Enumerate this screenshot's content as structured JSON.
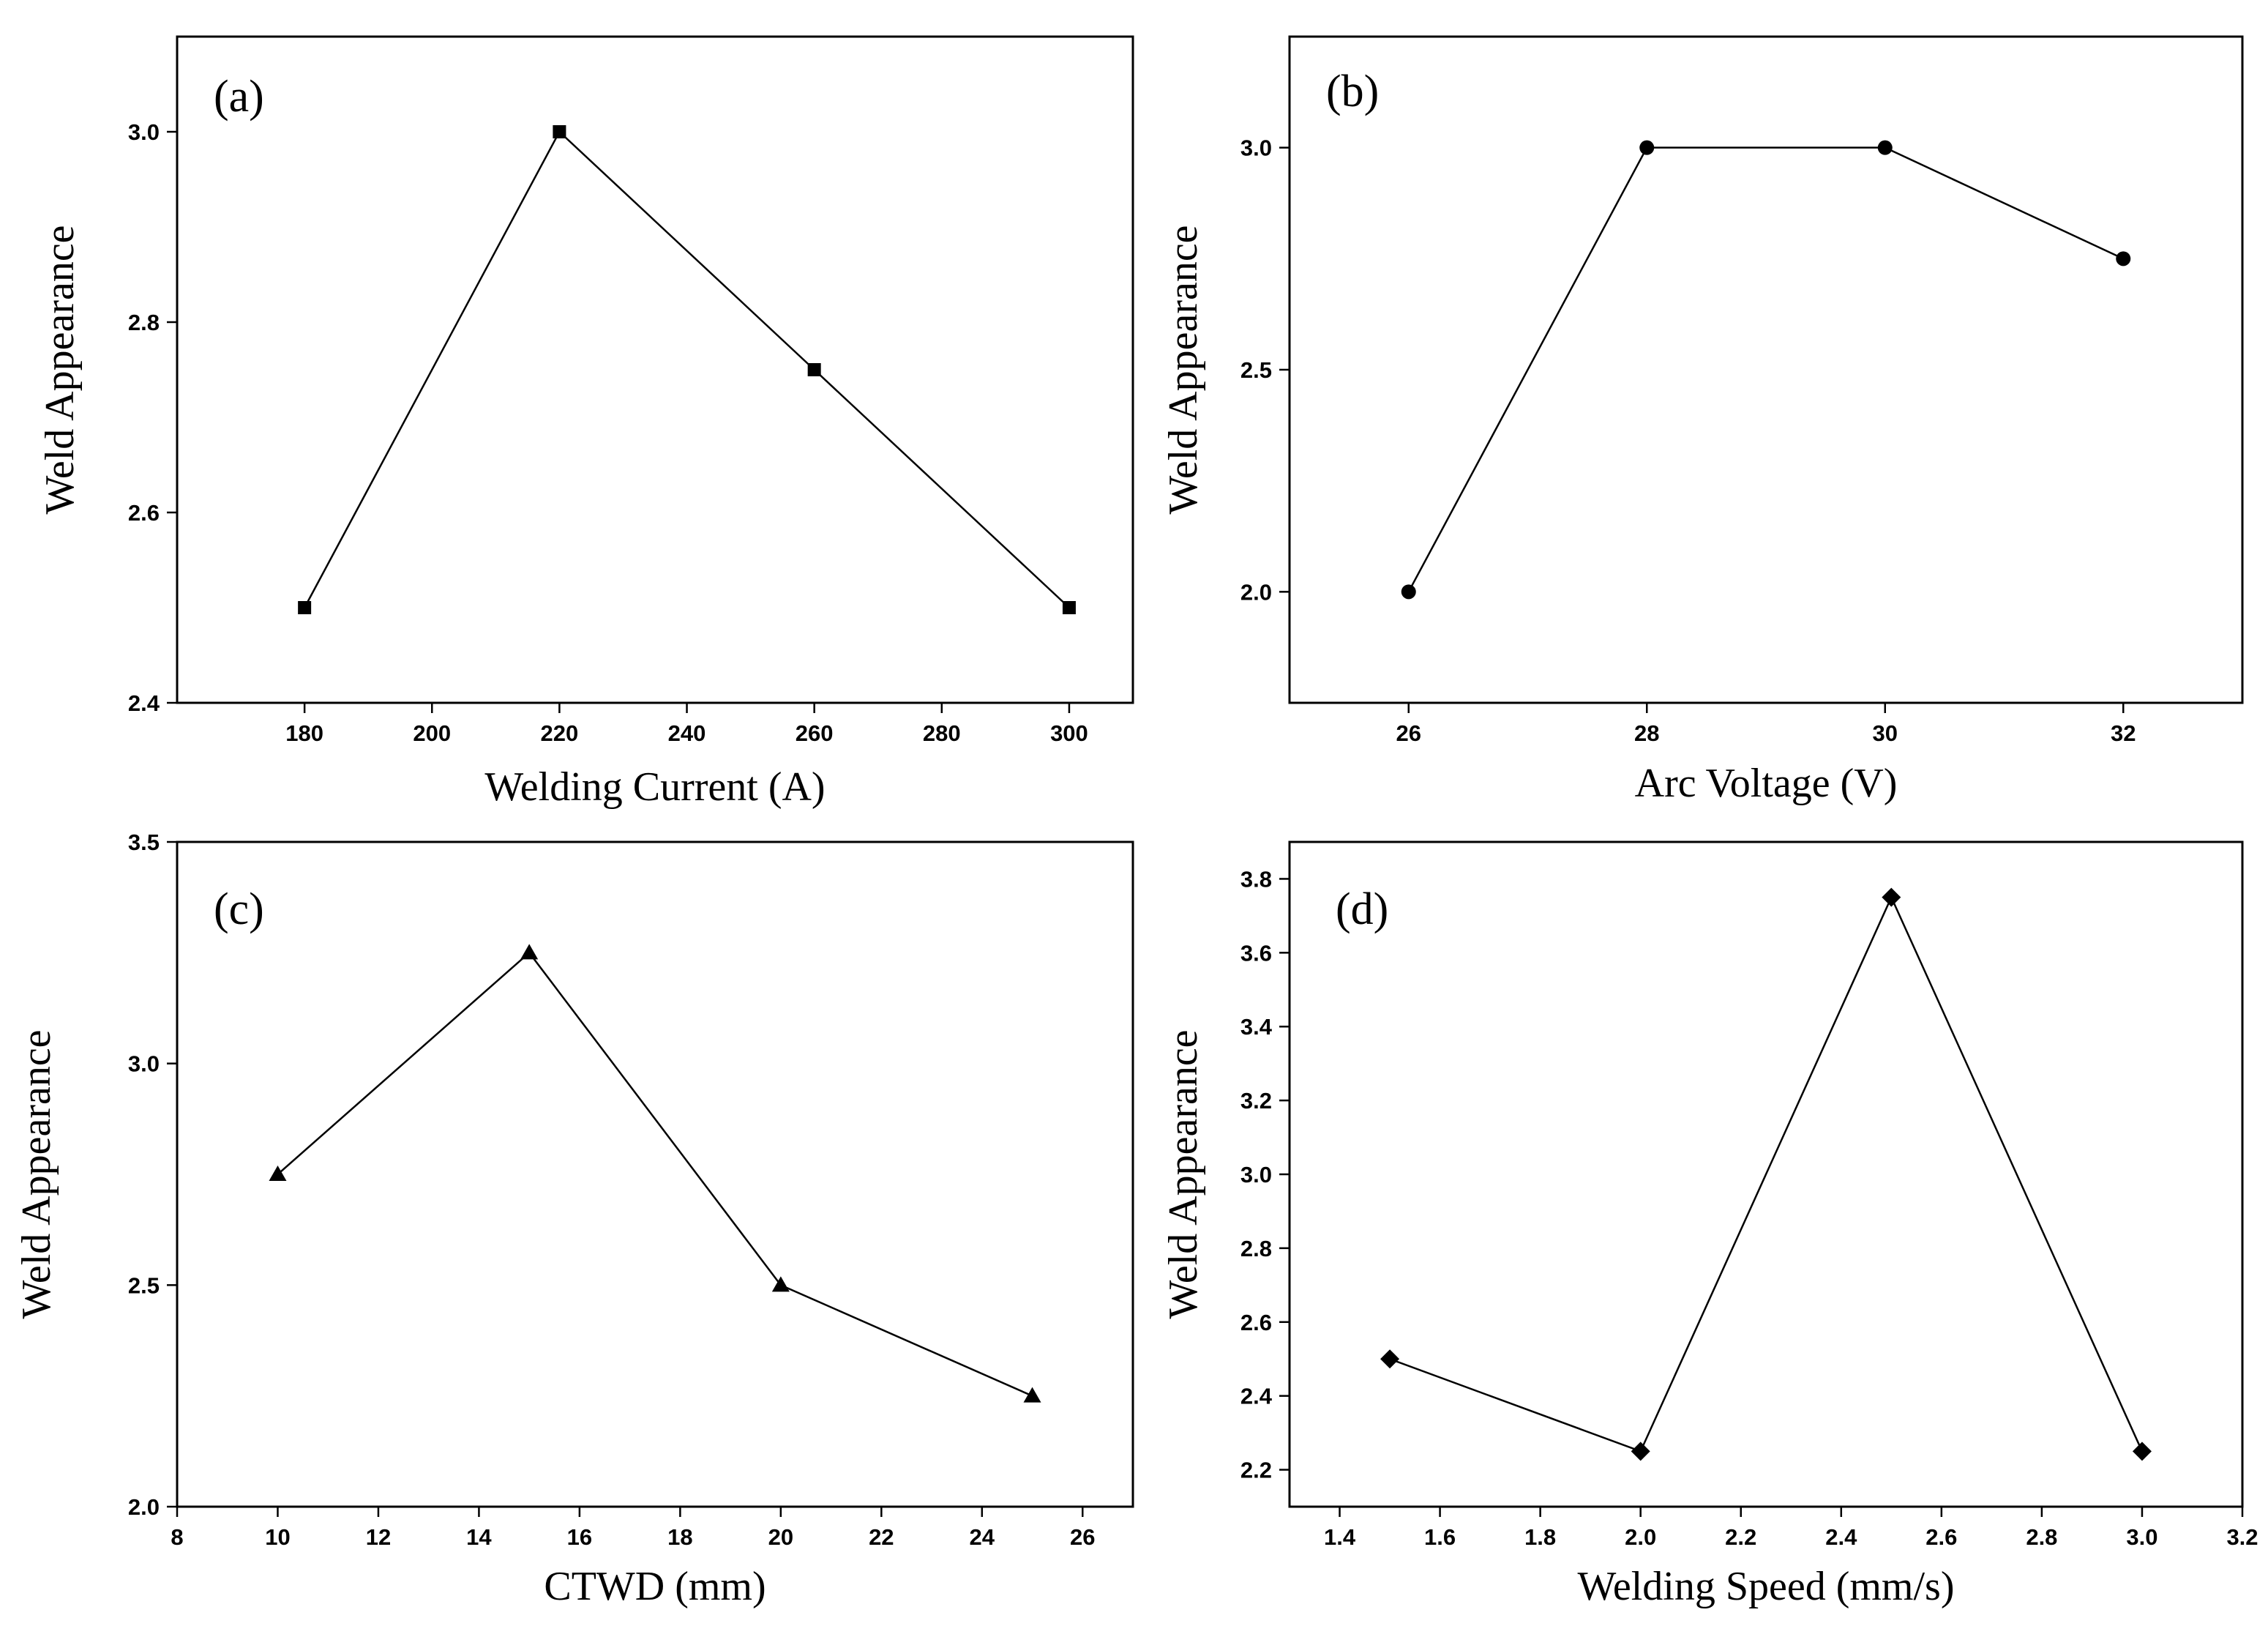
{
  "chart_data": [
    {
      "id": "a",
      "type": "line",
      "panel_label": "(a)",
      "xlabel": "Welding Current (A)",
      "ylabel": "Weld Appearance",
      "marker": "square",
      "xlim": [
        160,
        310
      ],
      "ylim": [
        2.4,
        3.1
      ],
      "xticks": [
        180,
        200,
        220,
        240,
        260,
        280,
        300
      ],
      "xtick_labels": [
        "180",
        "200",
        "220",
        "240",
        "260",
        "280",
        "300"
      ],
      "yticks": [
        2.4,
        2.6,
        2.8,
        3.0
      ],
      "ytick_labels": [
        "2.4",
        "2.6",
        "2.8",
        "3.0"
      ],
      "x": [
        180,
        220,
        260,
        300
      ],
      "y": [
        2.5,
        3.0,
        2.75,
        2.5
      ]
    },
    {
      "id": "b",
      "type": "line",
      "panel_label": "(b)",
      "xlabel": "Arc Voltage (V)",
      "ylabel": "Weld Appearance",
      "marker": "circle",
      "xlim": [
        25,
        33
      ],
      "ylim": [
        1.75,
        3.25
      ],
      "xticks": [
        26,
        28,
        30,
        32
      ],
      "xtick_labels": [
        "26",
        "28",
        "30",
        "32"
      ],
      "yticks": [
        2.0,
        2.5,
        3.0
      ],
      "ytick_labels": [
        "2.0",
        "2.5",
        "3.0"
      ],
      "x": [
        26,
        28,
        30,
        32
      ],
      "y": [
        2.0,
        3.0,
        3.0,
        2.75
      ]
    },
    {
      "id": "c",
      "type": "line",
      "panel_label": "(c)",
      "xlabel": "CTWD (mm)",
      "ylabel": "Weld Appearance",
      "marker": "triangle",
      "xlim": [
        8,
        27
      ],
      "ylim": [
        2.0,
        3.5
      ],
      "xticks": [
        8,
        10,
        12,
        14,
        16,
        18,
        20,
        22,
        24,
        26
      ],
      "xtick_labels": [
        "8",
        "10",
        "12",
        "14",
        "16",
        "18",
        "20",
        "22",
        "24",
        "26"
      ],
      "yticks": [
        2.0,
        2.5,
        3.0,
        3.5
      ],
      "ytick_labels": [
        "2.0",
        "2.5",
        "3.0",
        "3.5"
      ],
      "x": [
        10,
        15,
        20,
        25
      ],
      "y": [
        2.75,
        3.25,
        2.5,
        2.25
      ]
    },
    {
      "id": "d",
      "type": "line",
      "panel_label": "(d)",
      "xlabel": "Welding Speed (mm/s)",
      "ylabel": "Weld Appearance",
      "marker": "diamond",
      "xlim": [
        1.3,
        3.2
      ],
      "ylim": [
        2.1,
        3.9
      ],
      "xticks": [
        1.4,
        1.6,
        1.8,
        2.0,
        2.2,
        2.4,
        2.6,
        2.8,
        3.0,
        3.2
      ],
      "xtick_labels": [
        "1.4",
        "1.6",
        "1.8",
        "2.0",
        "2.2",
        "2.4",
        "2.6",
        "2.8",
        "3.0",
        "3.2"
      ],
      "yticks": [
        2.2,
        2.4,
        2.6,
        2.8,
        3.0,
        3.2,
        3.4,
        3.6,
        3.8
      ],
      "ytick_labels": [
        "2.2",
        "2.4",
        "2.6",
        "2.8",
        "3.0",
        "3.2",
        "3.4",
        "3.6",
        "3.8"
      ],
      "x": [
        1.5,
        2.0,
        2.5,
        3.0
      ],
      "y": [
        2.5,
        2.25,
        3.75,
        2.25
      ]
    }
  ]
}
